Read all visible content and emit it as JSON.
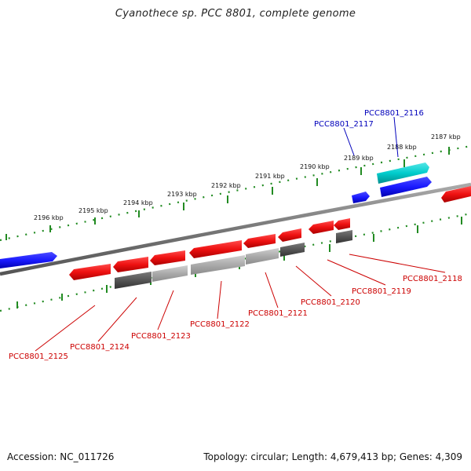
{
  "title": "Cyanothece sp. PCC 8801, complete genome",
  "footer": {
    "accession": "Accession: NC_011726",
    "stats": "Topology: circular; Length: 4,679,413 bp; Genes: 4,309"
  },
  "scale_labels": [
    "2187 kbp",
    "2188 kbp",
    "2189 kbp",
    "2190 kbp",
    "2191 kbp",
    "2192 kbp",
    "2193 kbp",
    "2194 kbp",
    "2195 kbp",
    "2196 kbp"
  ],
  "gene_labels_top": [
    "PCC8801_2116",
    "PCC8801_2117"
  ],
  "gene_labels_bottom": [
    "PCC8801_2118",
    "PCC8801_2119",
    "PCC8801_2120",
    "PCC8801_2121",
    "PCC8801_2122",
    "PCC8801_2123",
    "PCC8801_2124",
    "PCC8801_2125"
  ],
  "colors": {
    "forward_gene": "#1a1aff",
    "forward_rna": "#00cccc",
    "reverse_gene": "#ee1111",
    "reverse_rna_dark": "#555555",
    "reverse_rna_light": "#aaaaaa",
    "backbone": "#777777",
    "ticks": "#228b22",
    "top_label": "#0000bb",
    "bottom_label": "#cc0000"
  }
}
